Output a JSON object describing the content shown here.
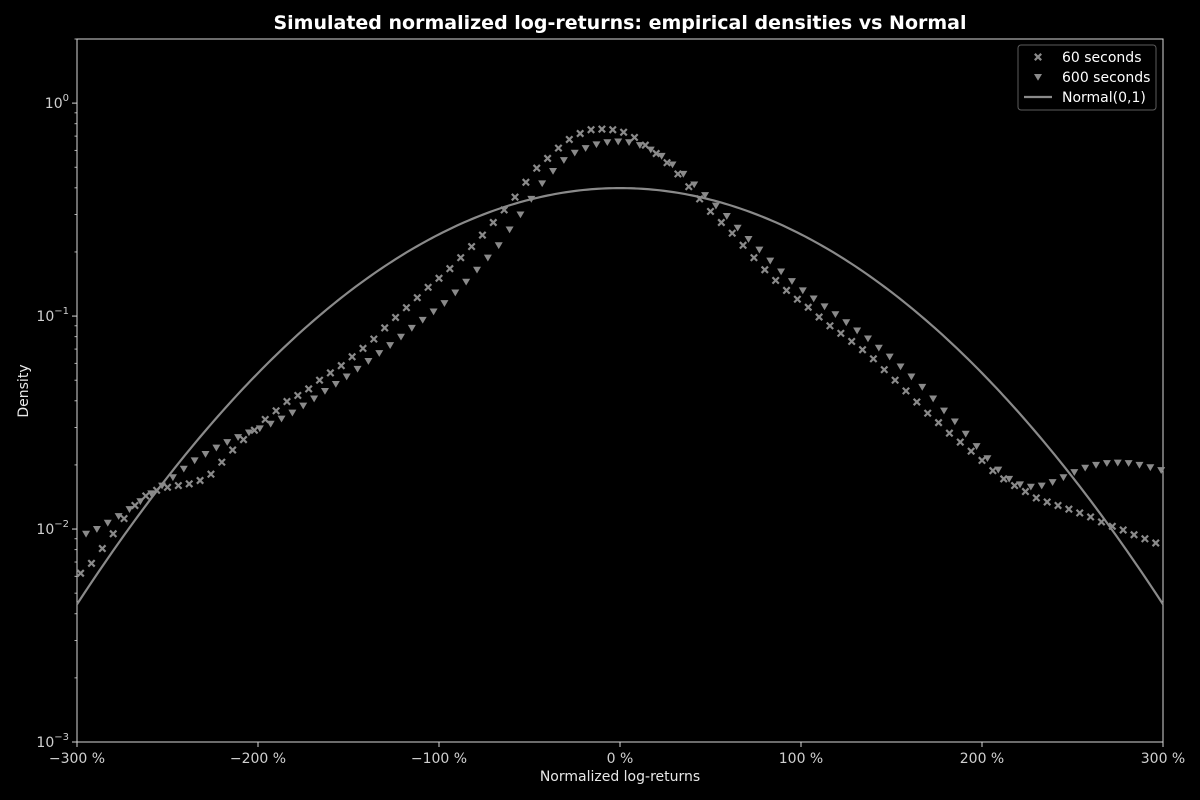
{
  "chart_data": {
    "type": "scatter",
    "title": "Simulated normalized log-returns: empirical densities vs Normal",
    "xlabel": "Normalized log-returns",
    "ylabel": "Density",
    "xlim": [
      -3,
      3
    ],
    "ylim": [
      0.001,
      2
    ],
    "yscale": "log",
    "x_ticks": [
      {
        "value": -3,
        "label": "−300 %"
      },
      {
        "value": -2,
        "label": "−200 %"
      },
      {
        "value": -1,
        "label": "−100 %"
      },
      {
        "value": 0,
        "label": "0 %"
      },
      {
        "value": 1,
        "label": "100 %"
      },
      {
        "value": 2,
        "label": "200 %"
      },
      {
        "value": 3,
        "label": "300 %"
      }
    ],
    "y_ticks": [
      {
        "value": 0.001,
        "base": "10",
        "exp": "−3"
      },
      {
        "value": 0.01,
        "base": "10",
        "exp": "−2"
      },
      {
        "value": 0.1,
        "base": "10",
        "exp": "−1"
      },
      {
        "value": 1,
        "base": "10",
        "exp": "0"
      }
    ],
    "grid": false,
    "legend_position": "top-right",
    "series": [
      {
        "name": "60 seconds",
        "marker": "x",
        "color": "#8a8a8a",
        "x": [
          -2.98,
          -2.92,
          -2.86,
          -2.8,
          -2.74,
          -2.68,
          -2.62,
          -2.56,
          -2.5,
          -2.44,
          -2.38,
          -2.32,
          -2.26,
          -2.2,
          -2.14,
          -2.08,
          -2.02,
          -1.96,
          -1.9,
          -1.84,
          -1.78,
          -1.72,
          -1.66,
          -1.6,
          -1.54,
          -1.48,
          -1.42,
          -1.36,
          -1.3,
          -1.24,
          -1.18,
          -1.12,
          -1.06,
          -1.0,
          -0.94,
          -0.88,
          -0.82,
          -0.76,
          -0.7,
          -0.64,
          -0.58,
          -0.52,
          -0.46,
          -0.4,
          -0.34,
          -0.28,
          -0.22,
          -0.16,
          -0.1,
          -0.04,
          0.02,
          0.08,
          0.14,
          0.2,
          0.26,
          0.32,
          0.38,
          0.44,
          0.5,
          0.56,
          0.62,
          0.68,
          0.74,
          0.8,
          0.86,
          0.92,
          0.98,
          1.04,
          1.1,
          1.16,
          1.22,
          1.28,
          1.34,
          1.4,
          1.46,
          1.52,
          1.58,
          1.64,
          1.7,
          1.76,
          1.82,
          1.88,
          1.94,
          2.0,
          2.06,
          2.12,
          2.18,
          2.24,
          2.3,
          2.36,
          2.42,
          2.48,
          2.54,
          2.6,
          2.66,
          2.72,
          2.78,
          2.84,
          2.9,
          2.96
        ],
        "y": [
          0.0062,
          0.0069,
          0.0081,
          0.0095,
          0.0112,
          0.0129,
          0.0143,
          0.0152,
          0.0157,
          0.016,
          0.0163,
          0.0169,
          0.0181,
          0.0206,
          0.0235,
          0.0263,
          0.0291,
          0.0327,
          0.0359,
          0.0397,
          0.0424,
          0.0455,
          0.05,
          0.0541,
          0.0585,
          0.0644,
          0.0705,
          0.078,
          0.088,
          0.0985,
          0.1095,
          0.122,
          0.1365,
          0.1505,
          0.167,
          0.188,
          0.212,
          0.24,
          0.275,
          0.315,
          0.362,
          0.425,
          0.495,
          0.55,
          0.615,
          0.675,
          0.72,
          0.75,
          0.755,
          0.75,
          0.73,
          0.69,
          0.635,
          0.58,
          0.525,
          0.465,
          0.405,
          0.355,
          0.31,
          0.275,
          0.245,
          0.215,
          0.188,
          0.165,
          0.147,
          0.132,
          0.12,
          0.11,
          0.099,
          0.09,
          0.083,
          0.076,
          0.0695,
          0.063,
          0.056,
          0.05,
          0.0445,
          0.0395,
          0.035,
          0.0316,
          0.0282,
          0.0256,
          0.0232,
          0.021,
          0.0188,
          0.0172,
          0.016,
          0.015,
          0.014,
          0.0134,
          0.0129,
          0.0124,
          0.0119,
          0.0114,
          0.0108,
          0.0103,
          0.0099,
          0.0094,
          0.009,
          0.0086
        ]
      },
      {
        "name": "600 seconds",
        "marker": "triangle-down",
        "color": "#8a8a8a",
        "x": [
          -2.95,
          -2.89,
          -2.83,
          -2.77,
          -2.71,
          -2.65,
          -2.59,
          -2.53,
          -2.47,
          -2.41,
          -2.35,
          -2.29,
          -2.23,
          -2.17,
          -2.11,
          -2.05,
          -1.99,
          -1.93,
          -1.87,
          -1.81,
          -1.75,
          -1.69,
          -1.63,
          -1.57,
          -1.51,
          -1.45,
          -1.39,
          -1.33,
          -1.27,
          -1.21,
          -1.15,
          -1.09,
          -1.03,
          -0.97,
          -0.91,
          -0.85,
          -0.79,
          -0.73,
          -0.67,
          -0.61,
          -0.55,
          -0.49,
          -0.43,
          -0.37,
          -0.31,
          -0.25,
          -0.19,
          -0.13,
          -0.07,
          -0.01,
          0.05,
          0.11,
          0.17,
          0.23,
          0.29,
          0.35,
          0.41,
          0.47,
          0.53,
          0.59,
          0.65,
          0.71,
          0.77,
          0.83,
          0.89,
          0.95,
          1.01,
          1.07,
          1.13,
          1.19,
          1.25,
          1.31,
          1.37,
          1.43,
          1.49,
          1.55,
          1.61,
          1.67,
          1.73,
          1.79,
          1.85,
          1.91,
          1.97,
          2.03,
          2.09,
          2.15,
          2.21,
          2.27,
          2.33,
          2.39,
          2.45,
          2.51,
          2.57,
          2.63,
          2.69,
          2.75,
          2.81,
          2.87,
          2.93,
          2.99
        ],
        "y": [
          0.0095,
          0.01,
          0.0107,
          0.0115,
          0.0124,
          0.0135,
          0.0147,
          0.016,
          0.0175,
          0.0192,
          0.021,
          0.0225,
          0.0241,
          0.0256,
          0.027,
          0.0284,
          0.0297,
          0.0312,
          0.033,
          0.0352,
          0.038,
          0.041,
          0.0445,
          0.048,
          0.052,
          0.0565,
          0.0615,
          0.067,
          0.073,
          0.08,
          0.088,
          0.096,
          0.105,
          0.115,
          0.129,
          0.145,
          0.165,
          0.188,
          0.215,
          0.255,
          0.3,
          0.355,
          0.42,
          0.48,
          0.54,
          0.585,
          0.615,
          0.64,
          0.655,
          0.66,
          0.655,
          0.635,
          0.605,
          0.565,
          0.515,
          0.465,
          0.415,
          0.37,
          0.33,
          0.295,
          0.26,
          0.23,
          0.205,
          0.182,
          0.162,
          0.146,
          0.132,
          0.121,
          0.111,
          0.102,
          0.0935,
          0.0855,
          0.0785,
          0.071,
          0.0645,
          0.058,
          0.052,
          0.0465,
          0.041,
          0.036,
          0.032,
          0.028,
          0.0245,
          0.0215,
          0.019,
          0.0172,
          0.0162,
          0.0158,
          0.016,
          0.0166,
          0.0175,
          0.0185,
          0.0194,
          0.02,
          0.0204,
          0.0205,
          0.0204,
          0.02,
          0.0195,
          0.0189
        ]
      },
      {
        "name": "Normal(0,1)",
        "marker": "line",
        "color": "#8a8a8a",
        "function": "standard normal pdf",
        "x_range": [
          -3,
          3
        ]
      }
    ]
  }
}
